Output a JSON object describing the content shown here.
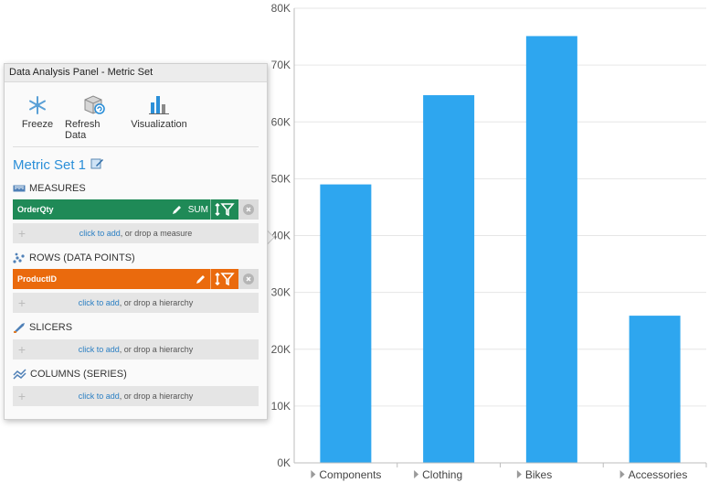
{
  "panel": {
    "title": "Data Analysis Panel - Metric Set",
    "tools": [
      {
        "label": "Freeze",
        "icon": "snowflake-icon"
      },
      {
        "label": "Refresh Data",
        "icon": "refresh-data-icon"
      },
      {
        "label": "Visualization",
        "icon": "bar-chart-icon"
      }
    ],
    "metric_set_title": "Metric Set 1",
    "sections": {
      "measures": {
        "label": "MEASURES",
        "field": "OrderQty",
        "aggregation": "SUM",
        "drop_link": "click to add",
        "drop_rest": ", or drop a measure"
      },
      "rows": {
        "label": "ROWS (DATA POINTS)",
        "field": "ProductID",
        "drop_link": "click to add",
        "drop_rest": ", or drop a hierarchy"
      },
      "slicers": {
        "label": "SLICERS",
        "drop_link": "click to add",
        "drop_rest": ", or drop a hierarchy"
      },
      "columns": {
        "label": "COLUMNS (SERIES)",
        "drop_link": "click to add",
        "drop_rest": ", or drop a hierarchy"
      }
    },
    "colors": {
      "measure": "#1f8a57",
      "row": "#ea6a0d",
      "accent": "#2b8fd8"
    }
  },
  "chart_data": {
    "type": "bar",
    "categories": [
      "Components",
      "Clothing",
      "Bikes",
      "Accessories"
    ],
    "values": [
      49000,
      64700,
      75100,
      25900
    ],
    "ylim": [
      0,
      80000
    ],
    "yticks": [
      "0K",
      "10K",
      "20K",
      "30K",
      "40K",
      "50K",
      "60K",
      "70K",
      "80K"
    ],
    "grid": true,
    "bar_color": "#2ea6ef"
  }
}
